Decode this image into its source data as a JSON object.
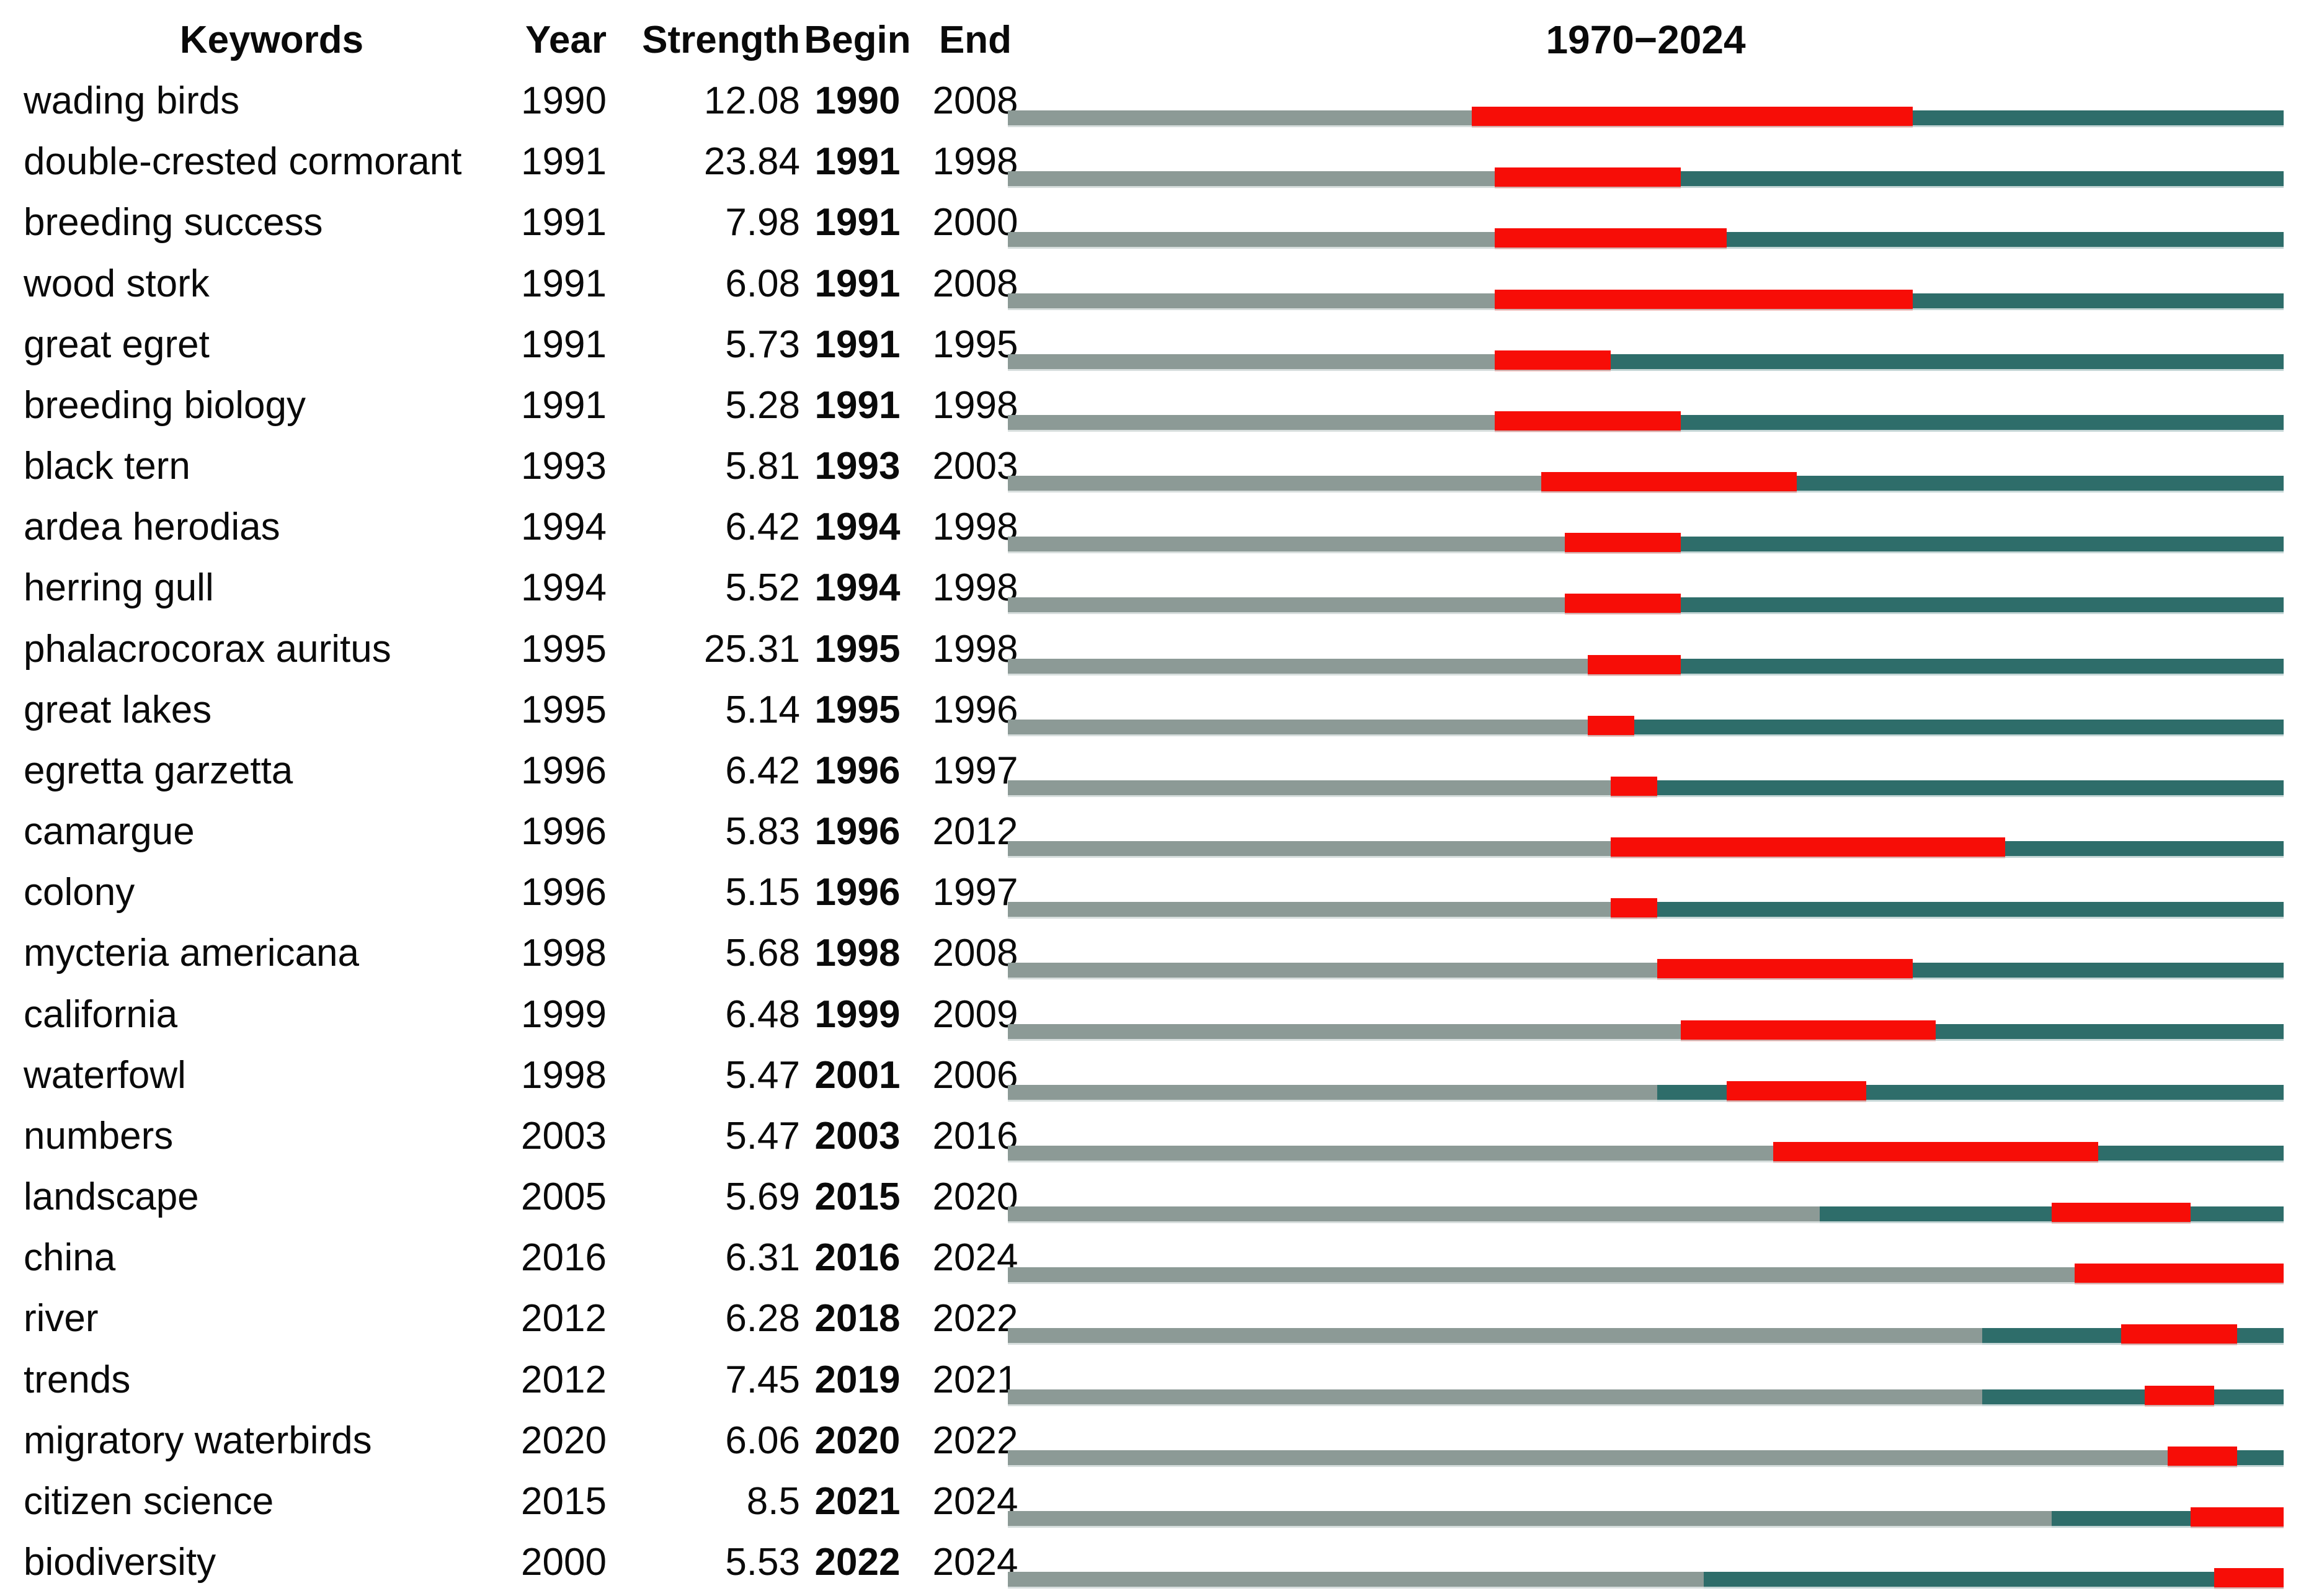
{
  "title": "1970−2024",
  "columns": {
    "keyword": "Keywords",
    "year": "Year",
    "strength": "Strength",
    "begin": "Begin",
    "end": "End"
  },
  "colors": {
    "pre_period_bar": "#8c9a96",
    "active_period_bar": "#2e6d6a",
    "burst_bar": "#f70d07"
  },
  "chart_data": {
    "type": "table",
    "title": "1970−2024",
    "timeline": {
      "start": 1970,
      "end": 2024
    },
    "legend_note": "gray = before keyword year, teal = keyword active period, red = citation burst interval",
    "columns": [
      "Keywords",
      "Year",
      "Strength",
      "Begin",
      "End"
    ],
    "rows": [
      {
        "keyword": "wading birds",
        "year": 1990,
        "strength": "12.08",
        "begin": 1990,
        "end": 2008
      },
      {
        "keyword": "double-crested cormorant",
        "year": 1991,
        "strength": "23.84",
        "begin": 1991,
        "end": 1998
      },
      {
        "keyword": "breeding success",
        "year": 1991,
        "strength": "7.98",
        "begin": 1991,
        "end": 2000
      },
      {
        "keyword": "wood stork",
        "year": 1991,
        "strength": "6.08",
        "begin": 1991,
        "end": 2008
      },
      {
        "keyword": "great egret",
        "year": 1991,
        "strength": "5.73",
        "begin": 1991,
        "end": 1995
      },
      {
        "keyword": "breeding biology",
        "year": 1991,
        "strength": "5.28",
        "begin": 1991,
        "end": 1998
      },
      {
        "keyword": "black tern",
        "year": 1993,
        "strength": "5.81",
        "begin": 1993,
        "end": 2003
      },
      {
        "keyword": "ardea herodias",
        "year": 1994,
        "strength": "6.42",
        "begin": 1994,
        "end": 1998
      },
      {
        "keyword": "herring gull",
        "year": 1994,
        "strength": "5.52",
        "begin": 1994,
        "end": 1998
      },
      {
        "keyword": "phalacrocorax auritus",
        "year": 1995,
        "strength": "25.31",
        "begin": 1995,
        "end": 1998
      },
      {
        "keyword": "great lakes",
        "year": 1995,
        "strength": "5.14",
        "begin": 1995,
        "end": 1996
      },
      {
        "keyword": "egretta garzetta",
        "year": 1996,
        "strength": "6.42",
        "begin": 1996,
        "end": 1997
      },
      {
        "keyword": "camargue",
        "year": 1996,
        "strength": "5.83",
        "begin": 1996,
        "end": 2012
      },
      {
        "keyword": "colony",
        "year": 1996,
        "strength": "5.15",
        "begin": 1996,
        "end": 1997
      },
      {
        "keyword": "mycteria americana",
        "year": 1998,
        "strength": "5.68",
        "begin": 1998,
        "end": 2008
      },
      {
        "keyword": "california",
        "year": 1999,
        "strength": "6.48",
        "begin": 1999,
        "end": 2009
      },
      {
        "keyword": "waterfowl",
        "year": 1998,
        "strength": "5.47",
        "begin": 2001,
        "end": 2006
      },
      {
        "keyword": "numbers",
        "year": 2003,
        "strength": "5.47",
        "begin": 2003,
        "end": 2016
      },
      {
        "keyword": "landscape",
        "year": 2005,
        "strength": "5.69",
        "begin": 2015,
        "end": 2020
      },
      {
        "keyword": "china",
        "year": 2016,
        "strength": "6.31",
        "begin": 2016,
        "end": 2024
      },
      {
        "keyword": "river",
        "year": 2012,
        "strength": "6.28",
        "begin": 2018,
        "end": 2022
      },
      {
        "keyword": "trends",
        "year": 2012,
        "strength": "7.45",
        "begin": 2019,
        "end": 2021
      },
      {
        "keyword": "migratory waterbirds",
        "year": 2020,
        "strength": "6.06",
        "begin": 2020,
        "end": 2022
      },
      {
        "keyword": "citizen science",
        "year": 2015,
        "strength": "8.5",
        "begin": 2021,
        "end": 2024
      },
      {
        "keyword": "biodiversity",
        "year": 2000,
        "strength": "5.53",
        "begin": 2022,
        "end": 2024
      }
    ]
  }
}
